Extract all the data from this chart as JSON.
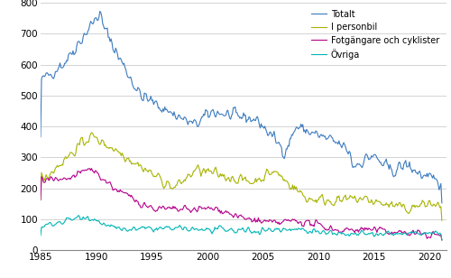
{
  "title": "",
  "xlabel": "",
  "ylabel": "",
  "xlim": [
    1985.0,
    2021.5
  ],
  "ylim": [
    0,
    800
  ],
  "yticks": [
    0,
    100,
    200,
    300,
    400,
    500,
    600,
    700,
    800
  ],
  "xticks": [
    1985,
    1990,
    1995,
    2000,
    2005,
    2010,
    2015,
    2020
  ],
  "colors": {
    "Totalt": "#3b7bbf",
    "I personbil": "#a8b400",
    "Fotgangare och cyklister": "#b5008c",
    "Ovriga": "#00b5b5"
  },
  "legend_labels": [
    "Totalt",
    "I personbil",
    "Fotgängare och cyklister",
    "Övriga"
  ],
  "background_color": "#ffffff",
  "grid_color": "#cccccc",
  "linewidth": 0.8
}
